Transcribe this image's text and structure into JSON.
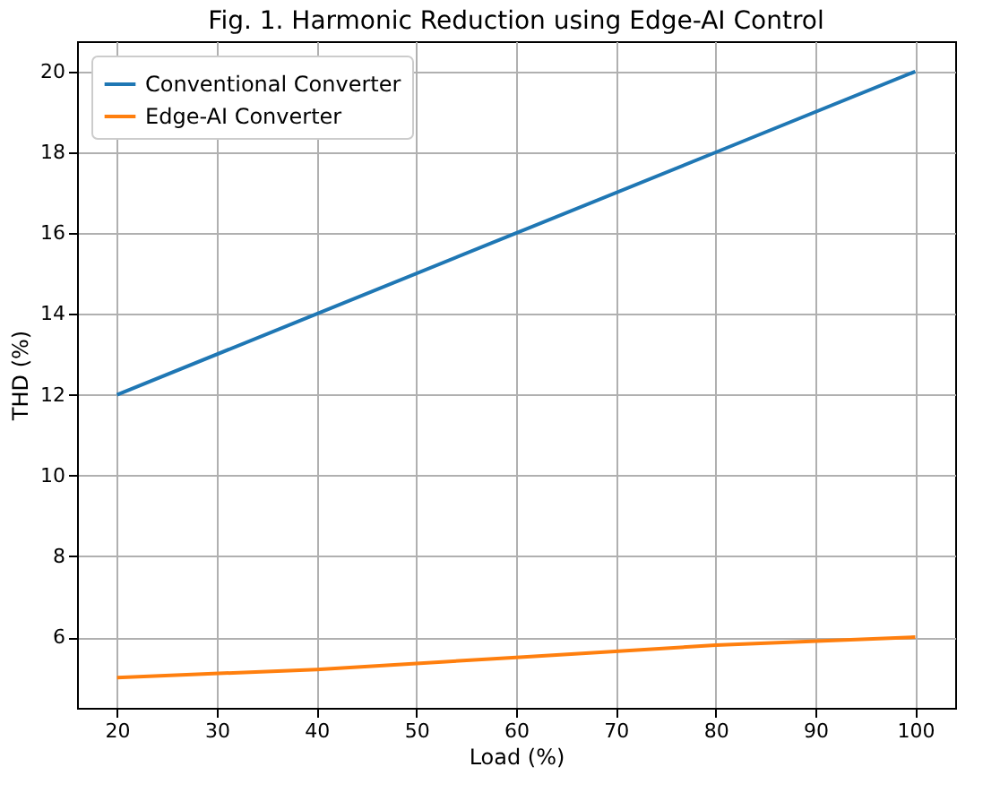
{
  "chart_data": {
    "type": "line",
    "title": "Fig. 1. Harmonic Reduction using Edge-AI Control",
    "xlabel": "Load (%)",
    "ylabel": "THD (%)",
    "x": [
      20,
      40,
      60,
      80,
      100
    ],
    "series": [
      {
        "name": "Conventional Converter",
        "color": "#1f77b4",
        "values": [
          12,
          14,
          16,
          18,
          20
        ]
      },
      {
        "name": "Edge-AI Converter",
        "color": "#ff7f0e",
        "values": [
          5,
          5.2,
          5.5,
          5.8,
          6
        ]
      }
    ],
    "xlim": [
      16,
      104
    ],
    "xticks": [
      20,
      30,
      40,
      50,
      60,
      70,
      80,
      90,
      100
    ],
    "ylim": [
      4.25,
      20.75
    ],
    "yticks": [
      6,
      8,
      10,
      12,
      14,
      16,
      18,
      20
    ],
    "grid": true,
    "legend": "top left",
    "line_style": "solid",
    "marker": "none"
  }
}
